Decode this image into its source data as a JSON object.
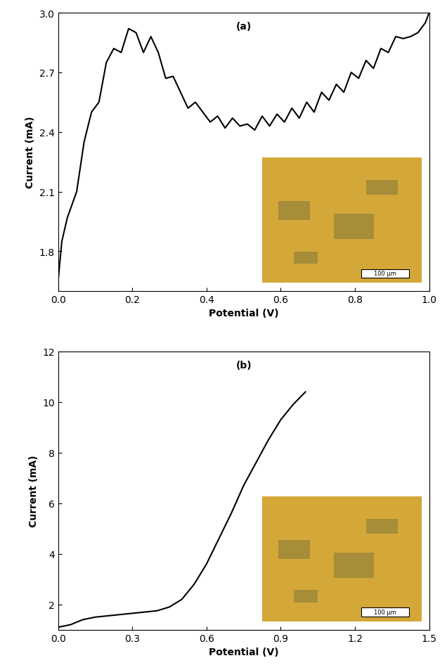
{
  "chart_data": [
    {
      "type": "line",
      "title": "(a)",
      "x_label": "Potential (V)",
      "y_label": "Current (mA)",
      "color": "#000000",
      "x": [
        0.0,
        0.01,
        0.025,
        0.05,
        0.07,
        0.09,
        0.11,
        0.13,
        0.15,
        0.17,
        0.19,
        0.21,
        0.23,
        0.25,
        0.27,
        0.29,
        0.31,
        0.33,
        0.35,
        0.37,
        0.39,
        0.41,
        0.43,
        0.45,
        0.47,
        0.49,
        0.51,
        0.53,
        0.55,
        0.57,
        0.59,
        0.61,
        0.63,
        0.65,
        0.67,
        0.69,
        0.71,
        0.73,
        0.75,
        0.77,
        0.79,
        0.81,
        0.83,
        0.85,
        0.87,
        0.89,
        0.91,
        0.93,
        0.95,
        0.97,
        0.99,
        1.0
      ],
      "values": [
        1.65,
        1.85,
        1.97,
        2.1,
        2.35,
        2.5,
        2.55,
        2.75,
        2.82,
        2.8,
        2.92,
        2.9,
        2.8,
        2.88,
        2.8,
        2.67,
        2.68,
        2.6,
        2.52,
        2.55,
        2.5,
        2.45,
        2.48,
        2.42,
        2.47,
        2.43,
        2.44,
        2.41,
        2.48,
        2.43,
        2.49,
        2.45,
        2.52,
        2.47,
        2.55,
        2.5,
        2.6,
        2.56,
        2.64,
        2.6,
        2.7,
        2.67,
        2.76,
        2.72,
        2.82,
        2.8,
        2.88,
        2.87,
        2.88,
        2.9,
        2.95,
        3.0
      ],
      "xlim": [
        0.0,
        1.0
      ],
      "xticks": [
        0.0,
        0.2,
        0.4,
        0.6,
        0.8,
        1.0
      ],
      "ylim": [
        1.6,
        3.0
      ],
      "yticks": [
        1.8,
        2.1,
        2.4,
        2.7,
        3.0
      ],
      "annotations": [
        "100 µm"
      ]
    },
    {
      "type": "line",
      "title": "(b)",
      "x_label": "Potential (V)",
      "y_label": "Current (mA)",
      "color": "#000000",
      "x": [
        0.0,
        0.05,
        0.1,
        0.15,
        0.2,
        0.25,
        0.3,
        0.35,
        0.4,
        0.45,
        0.5,
        0.55,
        0.6,
        0.65,
        0.7,
        0.75,
        0.8,
        0.85,
        0.9,
        0.95,
        1.0
      ],
      "values": [
        1.1,
        1.2,
        1.4,
        1.5,
        1.55,
        1.6,
        1.65,
        1.7,
        1.75,
        1.9,
        2.2,
        2.8,
        3.6,
        4.6,
        5.6,
        6.7,
        7.6,
        8.5,
        9.3,
        9.9,
        10.4
      ],
      "xlim": [
        0.0,
        1.5
      ],
      "xticks": [
        0.0,
        0.3,
        0.6,
        0.9,
        1.2,
        1.5
      ],
      "ylim": [
        1,
        12
      ],
      "yticks": [
        2,
        4,
        6,
        8,
        10,
        12
      ],
      "annotations": [
        "100 µm"
      ]
    }
  ]
}
